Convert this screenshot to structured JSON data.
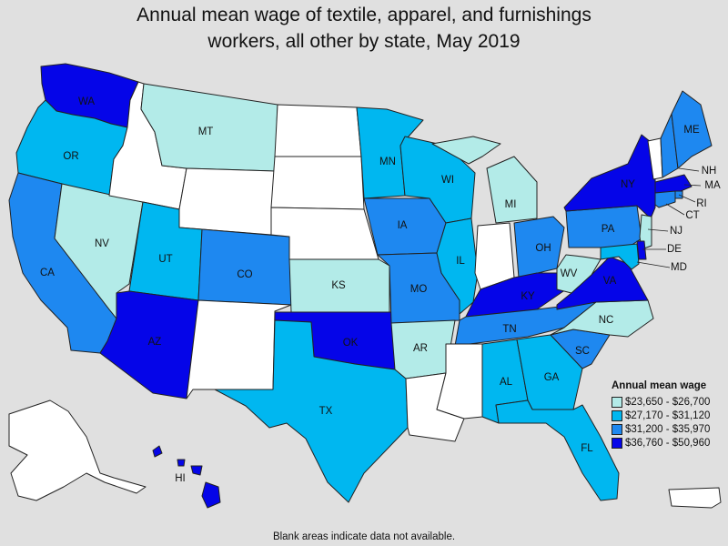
{
  "title": {
    "line1": "Annual mean wage of textile, apparel, and furnishings",
    "line2": "workers, all other by state, May 2019"
  },
  "colors": {
    "no_data": "#ffffff",
    "bin1": "#b3ebe8",
    "bin2": "#00b7f0",
    "bin3": "#1e88f0",
    "bin4": "#0505e8",
    "background": "#e0e0e0"
  },
  "legend": {
    "title": "Annual mean wage",
    "items": [
      {
        "label": "$23,650 - $26,700",
        "color": "#b3ebe8"
      },
      {
        "label": "$27,170 - $31,120",
        "color": "#00b7f0"
      },
      {
        "label": "$31,200 - $35,970",
        "color": "#1e88f0"
      },
      {
        "label": "$36,760 - $50,960",
        "color": "#0505e8"
      }
    ]
  },
  "footnote": "Blank areas indicate data not available.",
  "states": {
    "WA": {
      "label": "WA",
      "bin": 4
    },
    "OR": {
      "label": "OR",
      "bin": 2
    },
    "CA": {
      "label": "CA",
      "bin": 3
    },
    "NV": {
      "label": "NV",
      "bin": 1
    },
    "ID": {
      "label": "",
      "bin": 0
    },
    "MT": {
      "label": "MT",
      "bin": 1
    },
    "WY": {
      "label": "",
      "bin": 0
    },
    "UT": {
      "label": "UT",
      "bin": 2
    },
    "CO": {
      "label": "CO",
      "bin": 3
    },
    "AZ": {
      "label": "AZ",
      "bin": 4
    },
    "NM": {
      "label": "",
      "bin": 0
    },
    "ND": {
      "label": "",
      "bin": 0
    },
    "SD": {
      "label": "",
      "bin": 0
    },
    "NE": {
      "label": "",
      "bin": 0
    },
    "KS": {
      "label": "KS",
      "bin": 1
    },
    "OK": {
      "label": "OK",
      "bin": 4
    },
    "TX": {
      "label": "TX",
      "bin": 2
    },
    "MN": {
      "label": "MN",
      "bin": 2
    },
    "IA": {
      "label": "IA",
      "bin": 3
    },
    "MO": {
      "label": "MO",
      "bin": 3
    },
    "AR": {
      "label": "AR",
      "bin": 1
    },
    "LA": {
      "label": "",
      "bin": 0
    },
    "WI": {
      "label": "WI",
      "bin": 2
    },
    "IL": {
      "label": "IL",
      "bin": 2
    },
    "MI": {
      "label": "MI",
      "bin": 1
    },
    "IN": {
      "label": "",
      "bin": 0
    },
    "OH": {
      "label": "OH",
      "bin": 3
    },
    "KY": {
      "label": "KY",
      "bin": 4
    },
    "TN": {
      "label": "TN",
      "bin": 3
    },
    "MS": {
      "label": "",
      "bin": 0
    },
    "AL": {
      "label": "AL",
      "bin": 2
    },
    "GA": {
      "label": "GA",
      "bin": 2
    },
    "FL": {
      "label": "FL",
      "bin": 2
    },
    "SC": {
      "label": "SC",
      "bin": 3
    },
    "NC": {
      "label": "NC",
      "bin": 1
    },
    "VA": {
      "label": "VA",
      "bin": 4
    },
    "WV": {
      "label": "WV",
      "bin": 1
    },
    "PA": {
      "label": "PA",
      "bin": 3
    },
    "NY": {
      "label": "NY",
      "bin": 4
    },
    "VT": {
      "label": "",
      "bin": 0
    },
    "NH": {
      "label": "NH",
      "bin": 3
    },
    "ME": {
      "label": "ME",
      "bin": 3
    },
    "MA": {
      "label": "MA",
      "bin": 4
    },
    "RI": {
      "label": "RI",
      "bin": 3
    },
    "CT": {
      "label": "CT",
      "bin": 3
    },
    "NJ": {
      "label": "NJ",
      "bin": 1
    },
    "DE": {
      "label": "DE",
      "bin": 4
    },
    "MD": {
      "label": "MD",
      "bin": 2
    },
    "AK": {
      "label": "",
      "bin": 0
    },
    "HI": {
      "label": "HI",
      "bin": 4
    },
    "PR": {
      "label": "",
      "bin": 0
    }
  }
}
